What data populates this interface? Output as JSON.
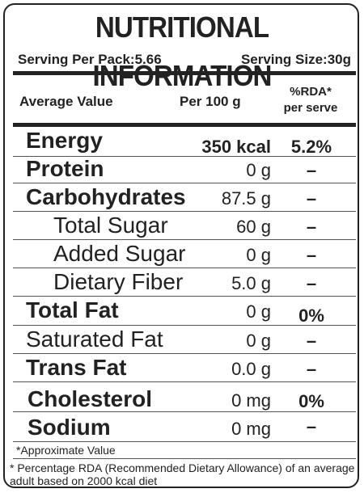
{
  "title": "NUTRITIONAL INFORMATION",
  "serving": {
    "per_pack": "Serving Per Pack:5.66",
    "size": "Serving Size:30g"
  },
  "header": {
    "average": "Average Value",
    "per100": "Per 100 g",
    "rda_line1": "%RDA*",
    "rda_line2": "per serve"
  },
  "rows": [
    {
      "name": "Energy",
      "value": "350 kcal",
      "rda": "5.2%"
    },
    {
      "name": "Protein",
      "value": "0 g",
      "rda": "–"
    },
    {
      "name": "Carbohydrates",
      "value": "87.5 g",
      "rda": "–"
    },
    {
      "name": "Total Sugar",
      "value": "60 g",
      "rda": "–"
    },
    {
      "name": "Added Sugar",
      "value": "0 g",
      "rda": "–"
    },
    {
      "name": "Dietary Fiber",
      "value": "5.0 g",
      "rda": "–"
    },
    {
      "name": "Total Fat",
      "value": "0 g",
      "rda": "0%"
    },
    {
      "name": "Saturated Fat",
      "value": "0 g",
      "rda": "–"
    },
    {
      "name": "Trans Fat",
      "value": "0.0 g",
      "rda": "–"
    },
    {
      "name": "Cholesterol",
      "value": "0 mg",
      "rda": "0%"
    },
    {
      "name": "Sodium",
      "value": "0 mg",
      "rda": "–"
    }
  ],
  "footnotes": {
    "approx": "*Approximate Value",
    "rda_note": "* Percentage RDA (Recommended Dietary Allowance) of an average adult based on 2000 kcal diet"
  }
}
